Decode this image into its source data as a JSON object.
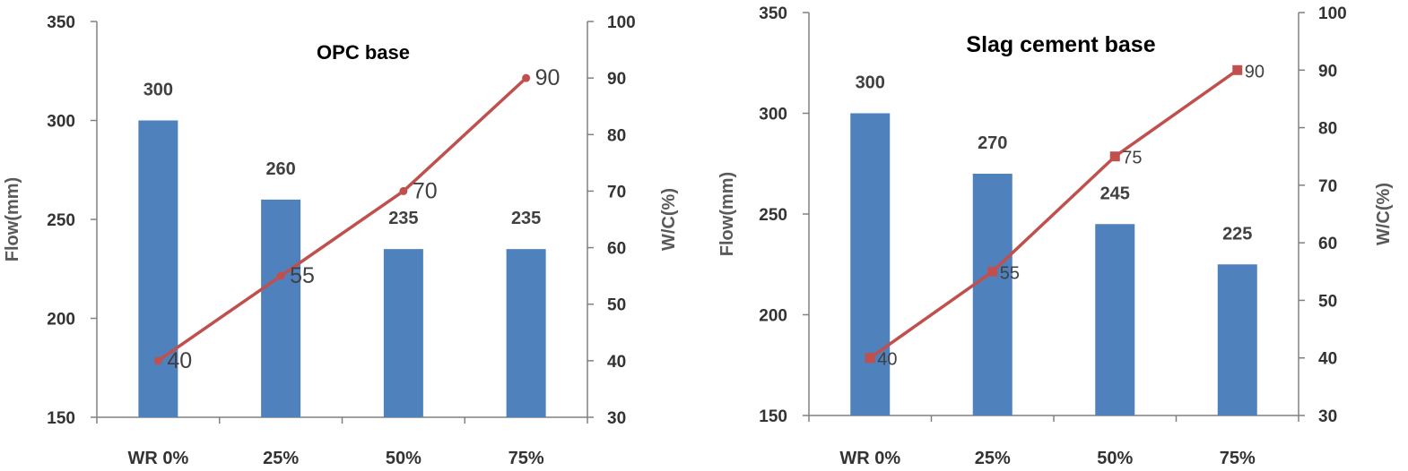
{
  "chart_data": [
    {
      "type": "bar+line",
      "title": "OPC base",
      "categories": [
        "WR 0%",
        "25%",
        "50%",
        "75%"
      ],
      "ylabel": "Flow(mm)",
      "y2label": "W/C(%)",
      "ylim": [
        150,
        350
      ],
      "y2lim": [
        30,
        100
      ],
      "yticks": [
        150,
        200,
        250,
        300,
        350
      ],
      "y2ticks": [
        30,
        40,
        50,
        60,
        70,
        80,
        90,
        100
      ],
      "series": [
        {
          "name": "",
          "type": "bar",
          "axis": "left",
          "color": "#4F81BD",
          "values": [
            300,
            260,
            235,
            235
          ],
          "labels": [
            "300",
            "260",
            "235",
            "235"
          ]
        },
        {
          "name": "",
          "type": "line",
          "axis": "right",
          "color": "#C0504D",
          "marker": "circle",
          "values": [
            40,
            55,
            70,
            90
          ],
          "labels": [
            "40",
            "55",
            "70",
            "90"
          ]
        }
      ],
      "grid": false
    },
    {
      "type": "bar+line",
      "title": "Slag cement base",
      "categories": [
        "WR 0%",
        "25%",
        "50%",
        "75%"
      ],
      "ylabel": "Flow(mm)",
      "y2label": "W/C(%)",
      "ylim": [
        150,
        350
      ],
      "y2lim": [
        30,
        100
      ],
      "yticks": [
        150,
        200,
        250,
        300,
        350
      ],
      "y2ticks": [
        30,
        40,
        50,
        60,
        70,
        80,
        90,
        100
      ],
      "series": [
        {
          "name": "",
          "type": "bar",
          "axis": "left",
          "color": "#4F81BD",
          "values": [
            300,
            270,
            245,
            225
          ],
          "labels": [
            "300",
            "270",
            "245",
            "225"
          ]
        },
        {
          "name": "",
          "type": "line",
          "axis": "right",
          "color": "#C0504D",
          "marker": "square",
          "values": [
            40,
            55,
            75,
            90
          ],
          "labels": [
            "40",
            "55",
            "75",
            "90"
          ]
        }
      ],
      "grid": false
    }
  ]
}
